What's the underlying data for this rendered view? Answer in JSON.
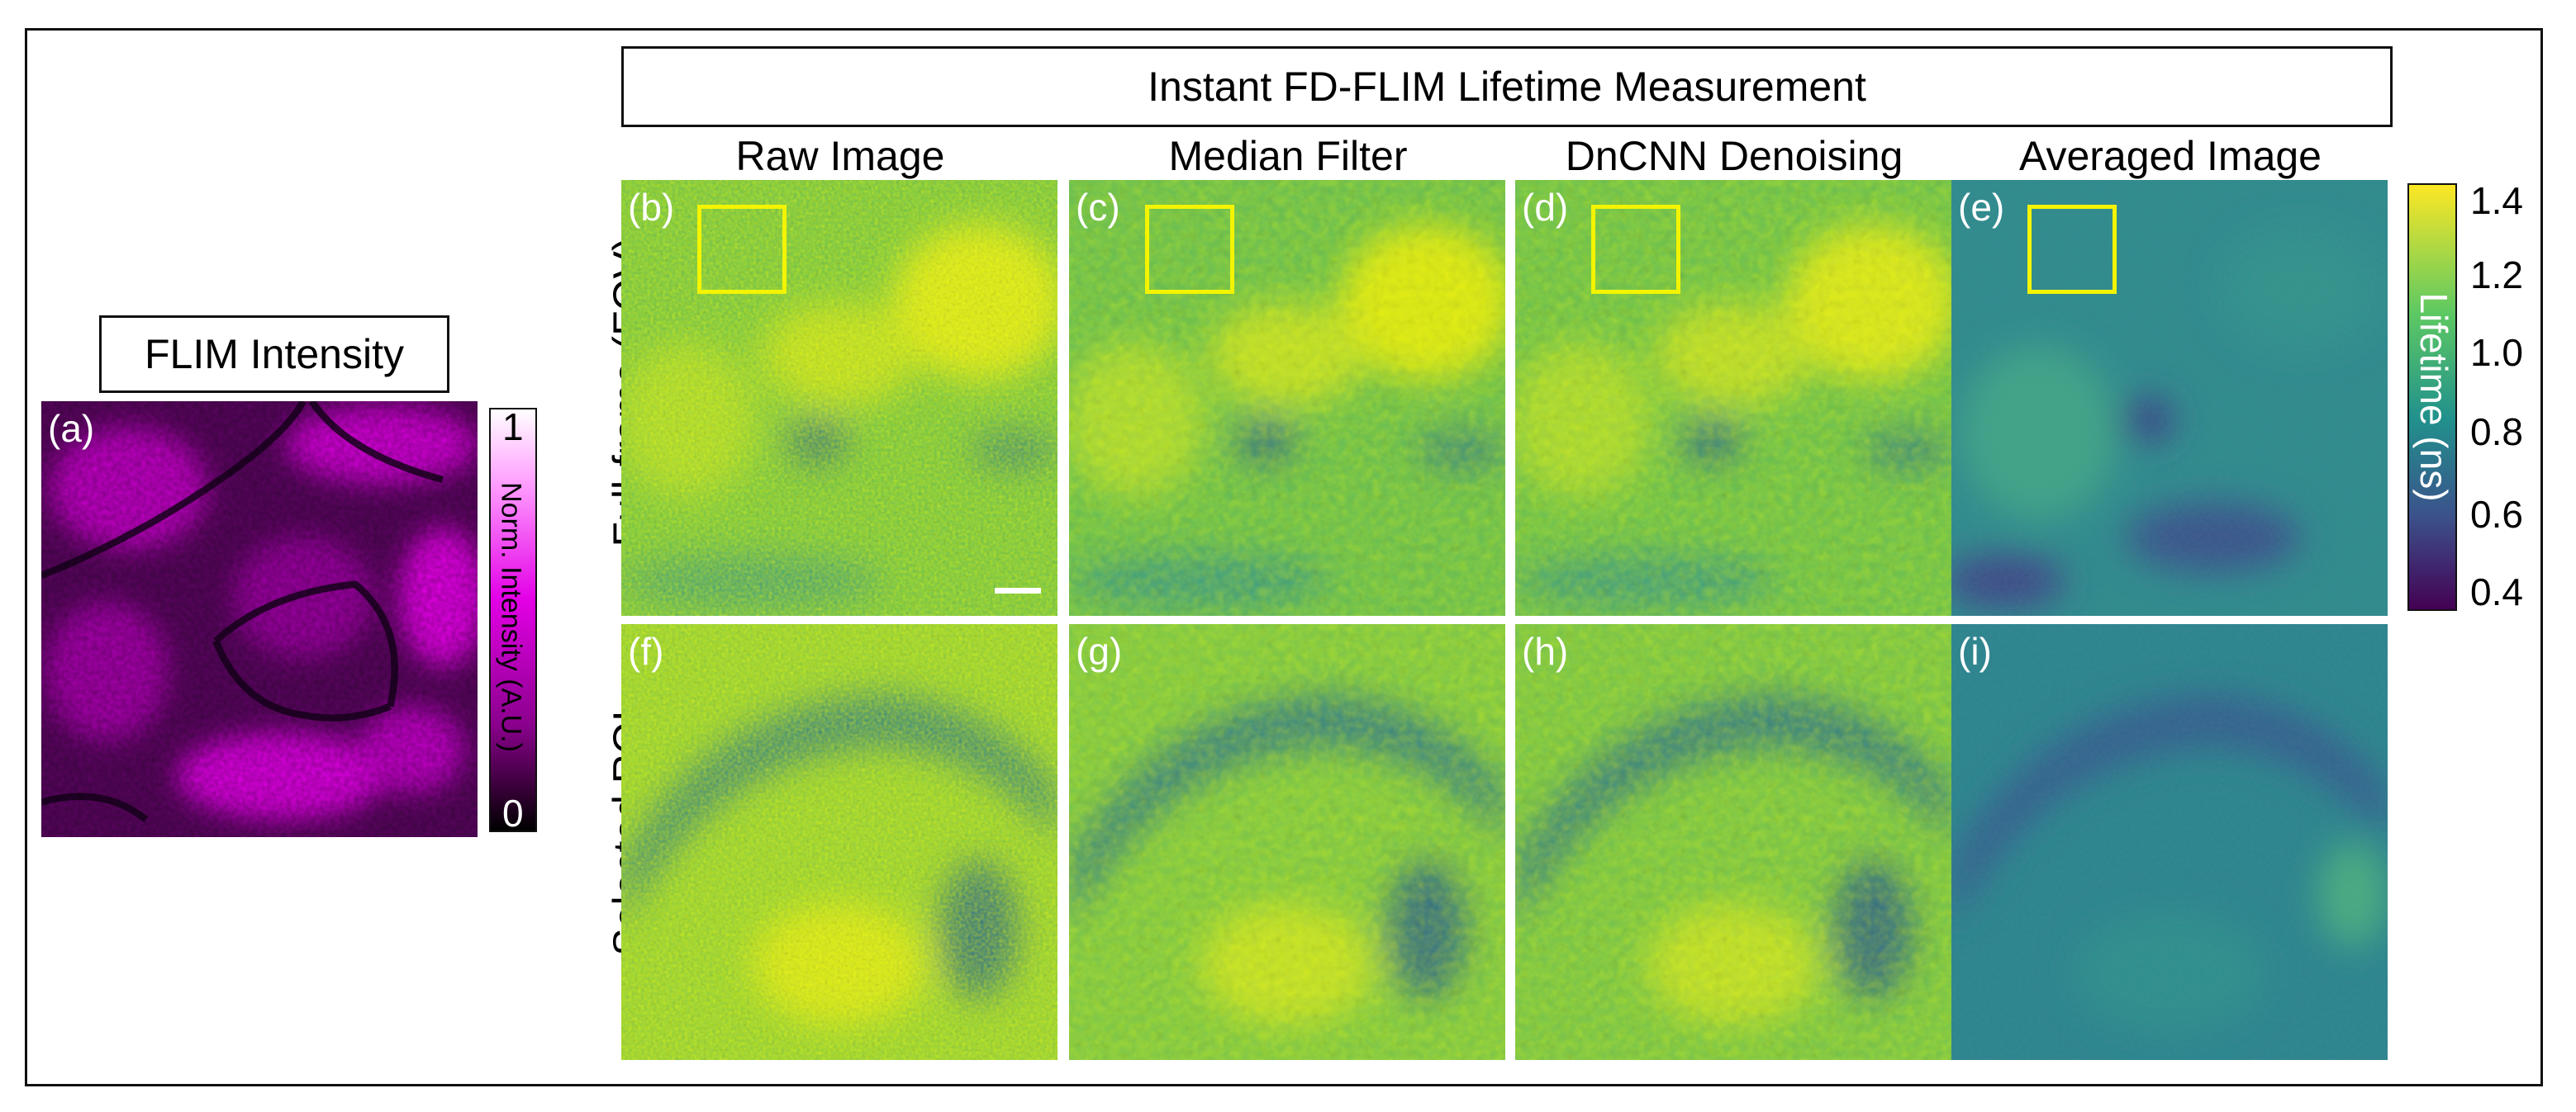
{
  "header": {
    "title": "Instant FD-FLIM Lifetime Measurement"
  },
  "left": {
    "title": "FLIM Intensity",
    "panel_label": "(a)",
    "colorbar": {
      "title": "Norm. Intensity (A.U.)",
      "max_label": "1",
      "min_label": "0"
    }
  },
  "columns": [
    "Raw Image",
    "Median Filter",
    "DnCNN Denoising",
    "Averaged Image"
  ],
  "rows": [
    "Full-frame (FOV)",
    "Selected ROI"
  ],
  "panels": {
    "fov": [
      "(b)",
      "(c)",
      "(d)",
      "(e)"
    ],
    "roi": [
      "(f)",
      "(g)",
      "(h)",
      "(i)"
    ]
  },
  "lifetime_colorbar": {
    "title": "Lifetime (ns)",
    "ticks": [
      "1.4",
      "1.2",
      "1.0",
      "0.8",
      "0.6",
      "0.4"
    ]
  },
  "colors": {
    "magenta": "#e300e6",
    "viridis_high": "#fde725",
    "viridis_mid": "#21918c",
    "viridis_low": "#440154",
    "roi_box": "#f4f400"
  }
}
